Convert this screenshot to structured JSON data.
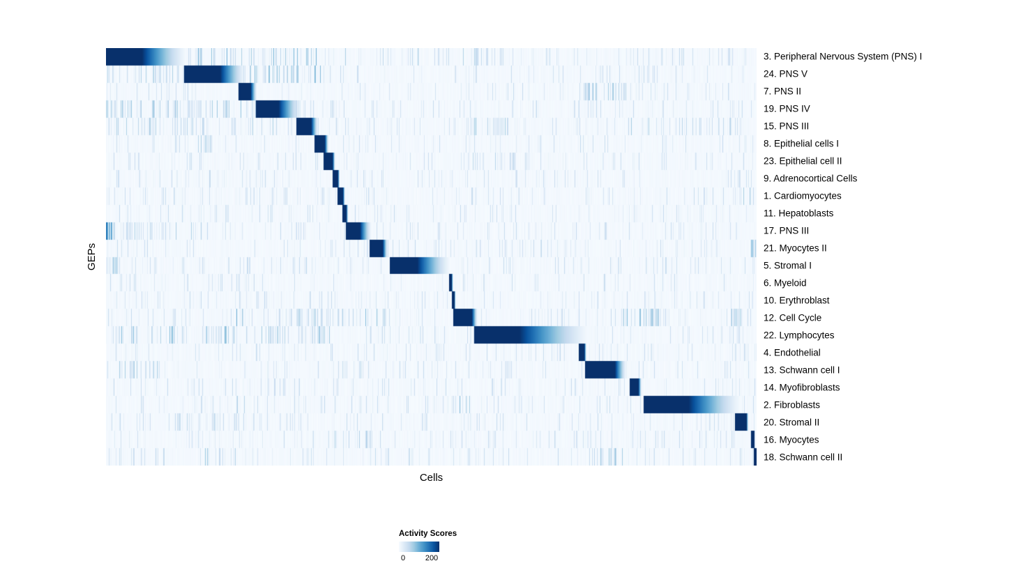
{
  "chart_data": {
    "type": "heatmap",
    "title": "",
    "xlabel": "Cells",
    "ylabel": "GEPs",
    "colorbar": {
      "title": "Activity Scores",
      "min": 0,
      "max": 200,
      "colormap": "Blues",
      "stops": [
        "#f7fbff",
        "#deebf7",
        "#c6dbef",
        "#9ecae1",
        "#6baed6",
        "#4292c6",
        "#2171b5",
        "#08519c",
        "#08306b"
      ]
    },
    "noise": {
      "seed": 7,
      "density": 0.1,
      "strength": 0.22
    },
    "rows": [
      {
        "label": "3. Peripheral Nervous System (PNS) I",
        "block": {
          "start": 0.0,
          "peak": 0.055,
          "end": 0.125
        },
        "clusters": [
          [
            0.12,
            0.35,
            0.25,
            0.45
          ],
          [
            0.35,
            0.6,
            0.07,
            0.3
          ]
        ]
      },
      {
        "label": "24. PNS V",
        "block": {
          "start": 0.12,
          "peak": 0.175,
          "end": 0.215
        },
        "clusters": [
          [
            0.0,
            0.12,
            0.18,
            0.3
          ],
          [
            0.22,
            0.33,
            0.25,
            0.4
          ]
        ]
      },
      {
        "label": "7. PNS II",
        "block": {
          "start": 0.203,
          "peak": 0.222,
          "end": 0.232
        },
        "clusters": [
          [
            0.73,
            0.8,
            0.3,
            0.35
          ]
        ]
      },
      {
        "label": "19. PNS IV",
        "block": {
          "start": 0.23,
          "peak": 0.265,
          "end": 0.3
        },
        "clusters": [
          [
            0.0,
            0.23,
            0.2,
            0.35
          ],
          [
            0.3,
            0.35,
            0.15,
            0.3
          ]
        ]
      },
      {
        "label": "15. PNS III",
        "block": {
          "start": 0.292,
          "peak": 0.315,
          "end": 0.326
        },
        "clusters": [
          [
            0.0,
            0.29,
            0.12,
            0.3
          ],
          [
            0.55,
            0.62,
            0.15,
            0.35
          ],
          [
            0.78,
            0.97,
            0.12,
            0.3
          ]
        ]
      },
      {
        "label": "8. Epithelial cells I",
        "block": {
          "start": 0.32,
          "peak": 0.336,
          "end": 0.342
        },
        "clusters": [
          [
            0.14,
            0.16,
            0.25,
            0.3
          ]
        ]
      },
      {
        "label": "23. Epithelial cell II",
        "block": {
          "start": 0.334,
          "peak": 0.348,
          "end": 0.352
        },
        "clusters": [
          [
            0.55,
            0.65,
            0.18,
            0.25
          ]
        ]
      },
      {
        "label": "9. Adrenocortical Cells",
        "block": {
          "start": 0.348,
          "peak": 0.356,
          "end": 0.359
        },
        "clusters": []
      },
      {
        "label": "1. Cardiomyocytes",
        "block": {
          "start": 0.355,
          "peak": 0.364,
          "end": 0.367
        },
        "clusters": [
          [
            0.97,
            0.99,
            0.2,
            0.3
          ]
        ]
      },
      {
        "label": "11. Hepatoblasts",
        "block": {
          "start": 0.363,
          "peak": 0.369,
          "end": 0.372
        },
        "clusters": []
      },
      {
        "label": "17. PNS III",
        "block": {
          "start": 0.368,
          "peak": 0.39,
          "end": 0.408
        },
        "clusters": [
          [
            0.0,
            0.012,
            0.6,
            0.7
          ],
          [
            0.02,
            0.2,
            0.1,
            0.3
          ]
        ]
      },
      {
        "label": "21. Myocytes II",
        "block": {
          "start": 0.405,
          "peak": 0.425,
          "end": 0.433
        },
        "clusters": [
          [
            0.2,
            0.22,
            0.2,
            0.3
          ],
          [
            0.99,
            1.0,
            0.4,
            0.5
          ]
        ]
      },
      {
        "label": "5. Stromal I",
        "block": {
          "start": 0.436,
          "peak": 0.478,
          "end": 0.53
        },
        "clusters": [
          [
            0.0,
            0.02,
            0.3,
            0.4
          ],
          [
            0.3,
            0.32,
            0.2,
            0.3
          ],
          [
            0.83,
            0.86,
            0.18,
            0.3
          ]
        ]
      },
      {
        "label": "6. Myeloid",
        "block": {
          "start": 0.527,
          "peak": 0.531,
          "end": 0.533
        },
        "clusters": []
      },
      {
        "label": "10. Erythroblast",
        "block": {
          "start": 0.531,
          "peak": 0.535,
          "end": 0.537
        },
        "clusters": []
      },
      {
        "label": "12. Cell Cycle",
        "block": {
          "start": 0.533,
          "peak": 0.562,
          "end": 0.571
        },
        "clusters": [
          [
            0.2,
            0.21,
            0.4,
            0.5
          ],
          [
            0.29,
            0.43,
            0.25,
            0.4
          ],
          [
            0.79,
            0.86,
            0.28,
            0.4
          ],
          [
            0.96,
            0.98,
            0.3,
            0.4
          ]
        ]
      },
      {
        "label": "22. Lymphocytes",
        "block": {
          "start": 0.565,
          "peak": 0.635,
          "end": 0.745
        },
        "clusters": [
          [
            0.0,
            0.35,
            0.25,
            0.4
          ]
        ]
      },
      {
        "label": "4. Endothelial",
        "block": {
          "start": 0.726,
          "peak": 0.735,
          "end": 0.738
        },
        "clusters": []
      },
      {
        "label": "13. Schwann cell I",
        "block": {
          "start": 0.736,
          "peak": 0.782,
          "end": 0.8
        },
        "clusters": [
          [
            0.02,
            0.08,
            0.25,
            0.35
          ],
          [
            0.35,
            0.4,
            0.18,
            0.3
          ]
        ]
      },
      {
        "label": "14. Myofibroblasts",
        "block": {
          "start": 0.804,
          "peak": 0.818,
          "end": 0.823
        },
        "clusters": []
      },
      {
        "label": "2. Fibroblasts",
        "block": {
          "start": 0.826,
          "peak": 0.895,
          "end": 0.978
        },
        "clusters": [
          [
            0.2,
            0.215,
            0.3,
            0.4
          ],
          [
            0.53,
            0.56,
            0.28,
            0.4
          ]
        ]
      },
      {
        "label": "20. Stromal II",
        "block": {
          "start": 0.966,
          "peak": 0.984,
          "end": 0.987
        },
        "clusters": [
          [
            0.05,
            0.3,
            0.1,
            0.25
          ]
        ]
      },
      {
        "label": "16. Myocytes",
        "block": {
          "start": 0.991,
          "peak": 0.996,
          "end": 0.997
        },
        "clusters": [
          [
            0.35,
            0.41,
            0.18,
            0.3
          ]
        ]
      },
      {
        "label": "18. Schwann cell II",
        "block": {
          "start": 0.995,
          "peak": 1.0,
          "end": 1.0
        },
        "clusters": [
          [
            0.15,
            0.2,
            0.25,
            0.35
          ],
          [
            0.74,
            0.8,
            0.25,
            0.35
          ]
        ]
      }
    ]
  }
}
